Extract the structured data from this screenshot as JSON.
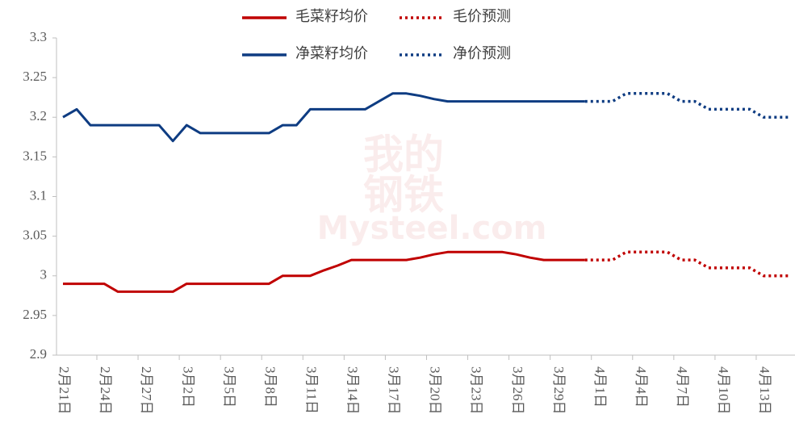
{
  "chart_data": {
    "type": "line",
    "watermark": [
      "我的",
      "钢铁",
      "Mysteel.com"
    ],
    "categories": [
      "2月21日",
      null,
      null,
      "2月24日",
      null,
      null,
      "2月27日",
      null,
      null,
      "3月2日",
      null,
      null,
      "3月5日",
      null,
      null,
      "3月8日",
      null,
      null,
      "3月11日",
      null,
      null,
      "3月14日",
      null,
      null,
      "3月17日",
      null,
      null,
      "3月20日",
      null,
      null,
      "3月23日",
      null,
      null,
      "3月26日",
      null,
      null,
      "3月29日",
      null,
      null,
      "4月1日",
      null,
      null,
      "4月4日",
      null,
      null,
      "4月7日",
      null,
      null,
      "4月10日",
      null,
      null,
      "4月13日",
      null,
      null
    ],
    "series": [
      {
        "name": "毛菜籽均价",
        "color": "#c00000",
        "dash": "solid",
        "values": [
          2.99,
          2.99,
          2.99,
          2.99,
          2.98,
          2.98,
          2.98,
          2.98,
          2.98,
          2.99,
          2.99,
          2.99,
          2.99,
          2.99,
          2.99,
          2.99,
          3.0,
          3.0,
          3.0,
          3.007,
          3.013,
          3.02,
          3.02,
          3.02,
          3.02,
          3.02,
          3.023,
          3.027,
          3.03,
          3.03,
          3.03,
          3.03,
          3.03,
          3.027,
          3.023,
          3.02,
          3.02,
          3.02,
          3.02,
          null,
          null,
          null,
          null,
          null,
          null,
          null,
          null,
          null,
          null,
          null,
          null,
          null,
          null,
          null
        ]
      },
      {
        "name": "毛价预测",
        "color": "#c00000",
        "dash": "dotted",
        "values": [
          null,
          null,
          null,
          null,
          null,
          null,
          null,
          null,
          null,
          null,
          null,
          null,
          null,
          null,
          null,
          null,
          null,
          null,
          null,
          null,
          null,
          null,
          null,
          null,
          null,
          null,
          null,
          null,
          null,
          null,
          null,
          null,
          null,
          null,
          null,
          null,
          null,
          null,
          3.02,
          3.02,
          3.02,
          3.03,
          3.03,
          3.03,
          3.03,
          3.02,
          3.02,
          3.01,
          3.01,
          3.01,
          3.01,
          3.0,
          3.0,
          3.0
        ]
      },
      {
        "name": "净菜籽均价",
        "color": "#0e3c82",
        "dash": "solid",
        "values": [
          3.2,
          3.21,
          3.19,
          3.19,
          3.19,
          3.19,
          3.19,
          3.19,
          3.17,
          3.19,
          3.18,
          3.18,
          3.18,
          3.18,
          3.18,
          3.18,
          3.19,
          3.19,
          3.21,
          3.21,
          3.21,
          3.21,
          3.21,
          3.22,
          3.23,
          3.23,
          3.227,
          3.223,
          3.22,
          3.22,
          3.22,
          3.22,
          3.22,
          3.22,
          3.22,
          3.22,
          3.22,
          3.22,
          3.22,
          null,
          null,
          null,
          null,
          null,
          null,
          null,
          null,
          null,
          null,
          null,
          null,
          null,
          null,
          null
        ]
      },
      {
        "name": "净价预测",
        "color": "#0e3c82",
        "dash": "dotted",
        "values": [
          null,
          null,
          null,
          null,
          null,
          null,
          null,
          null,
          null,
          null,
          null,
          null,
          null,
          null,
          null,
          null,
          null,
          null,
          null,
          null,
          null,
          null,
          null,
          null,
          null,
          null,
          null,
          null,
          null,
          null,
          null,
          null,
          null,
          null,
          null,
          null,
          null,
          null,
          3.22,
          3.22,
          3.22,
          3.23,
          3.23,
          3.23,
          3.23,
          3.22,
          3.22,
          3.21,
          3.21,
          3.21,
          3.21,
          3.2,
          3.2,
          3.2
        ]
      }
    ],
    "ylim": [
      2.9,
      3.3
    ],
    "yticks": [
      2.9,
      2.95,
      3,
      3.05,
      3.1,
      3.15,
      3.2,
      3.25,
      3.3
    ],
    "grid": false,
    "legend": "top"
  }
}
